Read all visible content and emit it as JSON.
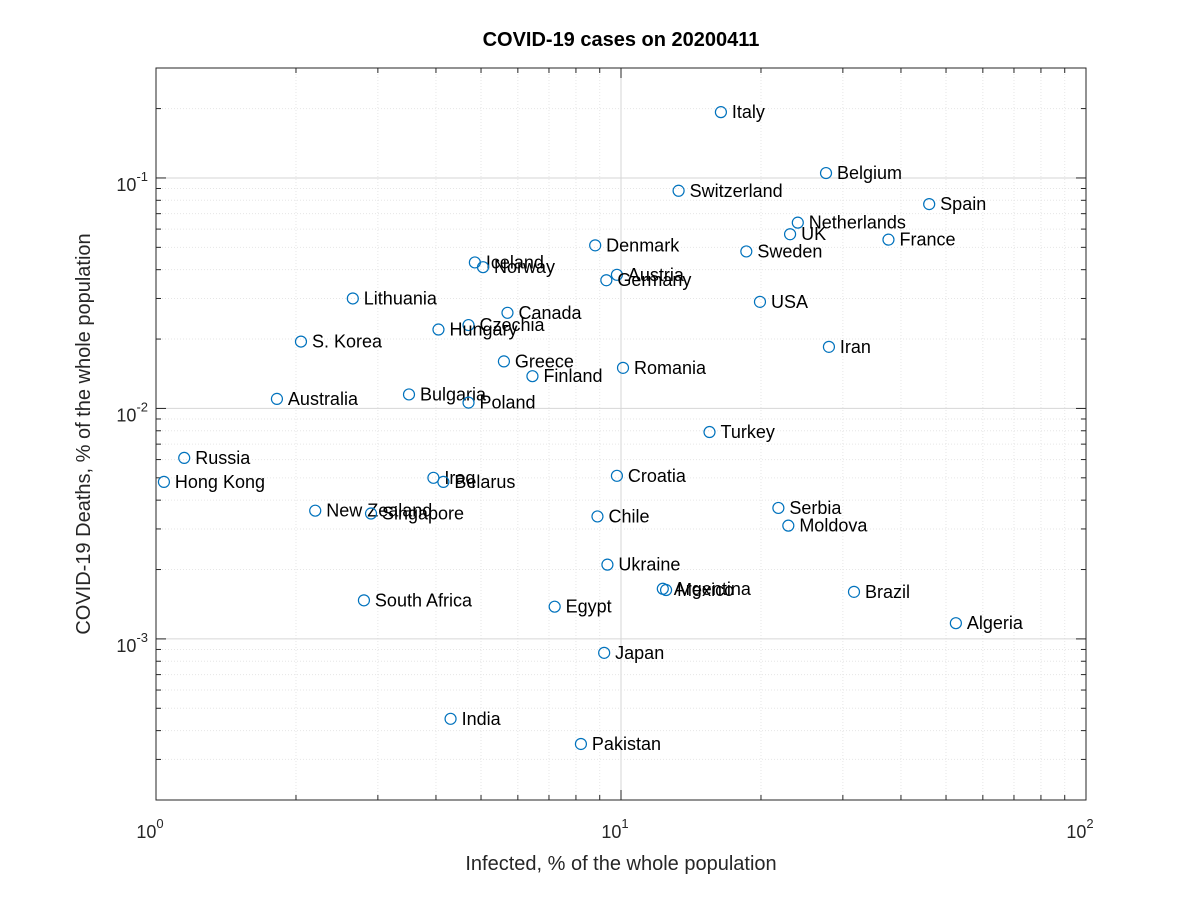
{
  "chart_data": {
    "type": "scatter",
    "title": "COVID-19 cases on 20200411",
    "xlabel": "Infected, % of the whole population",
    "ylabel": "COVID-19 Deaths, % of the whole population",
    "xscale": "log",
    "yscale": "log",
    "xlim": [
      1,
      100
    ],
    "ylim": [
      0.0002,
      0.3
    ],
    "grid": true,
    "marker": "open-circle",
    "marker_color": "#0072bd",
    "x_ticks": [
      {
        "base": "10",
        "exp": "0",
        "value": 1
      },
      {
        "base": "10",
        "exp": "1",
        "value": 10
      },
      {
        "base": "10",
        "exp": "2",
        "value": 100
      }
    ],
    "y_ticks": [
      {
        "base": "10",
        "exp": "-3",
        "value": 0.001
      },
      {
        "base": "10",
        "exp": "-2",
        "value": 0.01
      },
      {
        "base": "10",
        "exp": "-1",
        "value": 0.1
      }
    ],
    "points": [
      {
        "label": "Italy",
        "x": 16.4,
        "y": 0.193
      },
      {
        "label": "Belgium",
        "x": 27.6,
        "y": 0.105
      },
      {
        "label": "Spain",
        "x": 46.0,
        "y": 0.077
      },
      {
        "label": "Switzerland",
        "x": 13.3,
        "y": 0.088
      },
      {
        "label": "Netherlands",
        "x": 24.0,
        "y": 0.064
      },
      {
        "label": "UK",
        "x": 23.1,
        "y": 0.057
      },
      {
        "label": "France",
        "x": 37.6,
        "y": 0.054
      },
      {
        "label": "Denmark",
        "x": 8.8,
        "y": 0.051
      },
      {
        "label": "Sweden",
        "x": 18.6,
        "y": 0.048
      },
      {
        "label": "Iceland",
        "x": 4.85,
        "y": 0.043
      },
      {
        "label": "Norway",
        "x": 5.05,
        "y": 0.041
      },
      {
        "label": "Austria",
        "x": 9.8,
        "y": 0.038
      },
      {
        "label": "Germany",
        "x": 9.3,
        "y": 0.036
      },
      {
        "label": "Lithuania",
        "x": 2.65,
        "y": 0.03
      },
      {
        "label": "USA",
        "x": 19.9,
        "y": 0.029
      },
      {
        "label": "Canada",
        "x": 5.7,
        "y": 0.026
      },
      {
        "label": "Czechia",
        "x": 4.7,
        "y": 0.023
      },
      {
        "label": "Hungary",
        "x": 4.05,
        "y": 0.022
      },
      {
        "label": "S. Korea",
        "x": 2.05,
        "y": 0.0195
      },
      {
        "label": "Iran",
        "x": 28.0,
        "y": 0.0185
      },
      {
        "label": "Greece",
        "x": 5.6,
        "y": 0.016
      },
      {
        "label": "Romania",
        "x": 10.1,
        "y": 0.015
      },
      {
        "label": "Finland",
        "x": 6.45,
        "y": 0.0138
      },
      {
        "label": "Bulgaria",
        "x": 3.5,
        "y": 0.0115
      },
      {
        "label": "Australia",
        "x": 1.82,
        "y": 0.011
      },
      {
        "label": "Poland",
        "x": 4.7,
        "y": 0.0106
      },
      {
        "label": "Turkey",
        "x": 15.5,
        "y": 0.0079
      },
      {
        "label": "Russia",
        "x": 1.15,
        "y": 0.0061
      },
      {
        "label": "Croatia",
        "x": 9.8,
        "y": 0.0051
      },
      {
        "label": "Iraq",
        "x": 3.95,
        "y": 0.005
      },
      {
        "label": "Hong Kong",
        "x": 1.04,
        "y": 0.0048
      },
      {
        "label": "Belarus",
        "x": 4.15,
        "y": 0.0048
      },
      {
        "label": "Serbia",
        "x": 21.8,
        "y": 0.0037
      },
      {
        "label": "New Zealand",
        "x": 2.2,
        "y": 0.0036
      },
      {
        "label": "Singapore",
        "x": 2.9,
        "y": 0.0035
      },
      {
        "label": "Chile",
        "x": 8.9,
        "y": 0.0034
      },
      {
        "label": "Moldova",
        "x": 22.9,
        "y": 0.0031
      },
      {
        "label": "Ukraine",
        "x": 9.35,
        "y": 0.0021
      },
      {
        "label": "Argentina",
        "x": 12.3,
        "y": 0.00165
      },
      {
        "label": "Mexico",
        "x": 12.5,
        "y": 0.00163
      },
      {
        "label": "Brazil",
        "x": 31.7,
        "y": 0.0016
      },
      {
        "label": "South Africa",
        "x": 2.8,
        "y": 0.00147
      },
      {
        "label": "Egypt",
        "x": 7.2,
        "y": 0.00138
      },
      {
        "label": "Algeria",
        "x": 52.5,
        "y": 0.00117
      },
      {
        "label": "Japan",
        "x": 9.2,
        "y": 0.00087
      },
      {
        "label": "India",
        "x": 4.3,
        "y": 0.00045
      },
      {
        "label": "Pakistan",
        "x": 8.2,
        "y": 0.00035
      }
    ]
  }
}
